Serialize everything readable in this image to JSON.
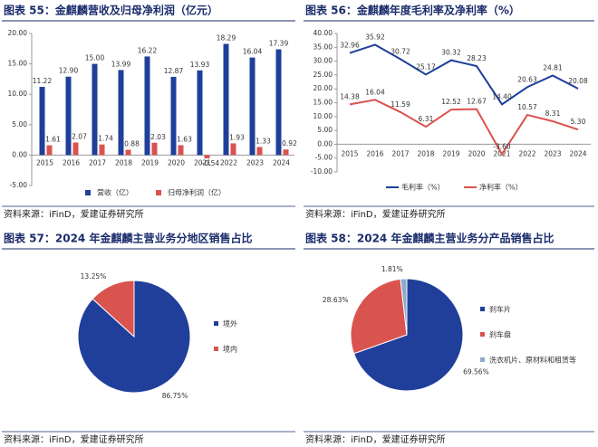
{
  "chart_data": [
    {
      "type": "bar",
      "title": "图表 55：金麒麟营收及归母净利润（亿元）",
      "source": "资料来源：iFinD，爱建证券研究所",
      "categories": [
        "2015",
        "2016",
        "2017",
        "2018",
        "2019",
        "2020",
        "2021",
        "2022",
        "2023",
        "2024"
      ],
      "series": [
        {
          "name": "营收（亿）",
          "color": "#1f3f9a",
          "values": [
            11.22,
            12.9,
            15,
            13.99,
            16.22,
            12.87,
            13.93,
            18.29,
            16.04,
            17.39
          ],
          "value_labels": [
            "11.22",
            "12.90",
            "15.00",
            "13.99",
            "16.22",
            "12.87",
            "13.93",
            "18.29",
            "16.04",
            "17.39"
          ]
        },
        {
          "name": "归母净利润（亿）",
          "color": "#d9534f",
          "values": [
            1.61,
            2.07,
            1.74,
            0.88,
            2.03,
            1.63,
            -0.54,
            1.93,
            1.33,
            0.92
          ],
          "value_labels": [
            "1.61",
            "2.07",
            "1.74",
            "0.88",
            "2.03",
            "1.63",
            "-0.54",
            "1.93",
            "1.33",
            "0.92"
          ]
        }
      ],
      "ylim": [
        -5,
        20
      ],
      "yticks": [
        {
          "value": -5,
          "label": "-5.00"
        },
        {
          "value": 0,
          "label": "0.00"
        },
        {
          "value": 5,
          "label": "5.00"
        },
        {
          "value": 10,
          "label": "10.00"
        },
        {
          "value": 15,
          "label": "15.00"
        },
        {
          "value": 20,
          "label": "20.00"
        }
      ],
      "legend": "bottom"
    },
    {
      "type": "line",
      "title": "图表 56：金麒麟年度毛利率及净利率（%）",
      "source": "资料来源：iFinD，爱建证券研究所",
      "categories": [
        "2015",
        "2016",
        "2017",
        "2018",
        "2019",
        "2020",
        "2021",
        "2022",
        "2023",
        "2024"
      ],
      "series": [
        {
          "name": "毛利率（%）",
          "color": "#1f3f9a",
          "values": [
            32.96,
            35.92,
            30.72,
            25.17,
            30.32,
            28.23,
            14.4,
            20.63,
            24.81,
            20.08
          ],
          "value_labels": [
            "32.96",
            "35.92",
            "30.72",
            "25.17",
            "30.32",
            "28.23",
            "14.40",
            "20.63",
            "24.81",
            "20.08"
          ]
        },
        {
          "name": "净利率（%）",
          "color": "#d9534f",
          "values": [
            14.38,
            16.04,
            11.59,
            6.31,
            12.52,
            12.67,
            -3.6,
            10.57,
            8.31,
            5.3
          ],
          "value_labels": [
            "14.38",
            "16.04",
            "11.59",
            "6.31",
            "12.52",
            "12.67",
            "-3.60",
            "10.57",
            "8.31",
            "5.30"
          ]
        }
      ],
      "ylim": [
        -10,
        40
      ],
      "yticks": [
        {
          "value": -10,
          "label": "-10.00"
        },
        {
          "value": -5,
          "label": "-5.00"
        },
        {
          "value": 0,
          "label": "0.00"
        },
        {
          "value": 5,
          "label": "5.00"
        },
        {
          "value": 10,
          "label": "10.00"
        },
        {
          "value": 15,
          "label": "15.00"
        },
        {
          "value": 20,
          "label": "20.00"
        },
        {
          "value": 25,
          "label": "25.00"
        },
        {
          "value": 30,
          "label": "30.00"
        },
        {
          "value": 35,
          "label": "35.00"
        },
        {
          "value": 40,
          "label": "40.00"
        }
      ],
      "legend": "bottom"
    },
    {
      "type": "pie",
      "title": "图表 57：2024 年金麒麟主营业务分地区销售占比",
      "source": "资料来源：iFinD，爱建证券研究所",
      "categories": [
        "境外",
        "境内"
      ],
      "values": [
        86.75,
        13.25
      ],
      "value_labels": [
        "86.75%",
        "13.25%"
      ],
      "colors": [
        "#1f3f9a",
        "#d9534f"
      ],
      "legend": "right"
    },
    {
      "type": "pie",
      "title": "图表 58：2024 年金麒麟主营业务分产品销售占比",
      "source": "资料来源：iFinD，爱建证券研究所",
      "categories": [
        "刹车片",
        "刹车盘",
        "洗衣机片、原材料和租赁等"
      ],
      "values": [
        69.56,
        28.63,
        1.81
      ],
      "value_labels": [
        "69.56%",
        "28.63%",
        "1.81%"
      ],
      "colors": [
        "#1f3f9a",
        "#d9534f",
        "#8eaacb"
      ],
      "legend": "right"
    }
  ]
}
